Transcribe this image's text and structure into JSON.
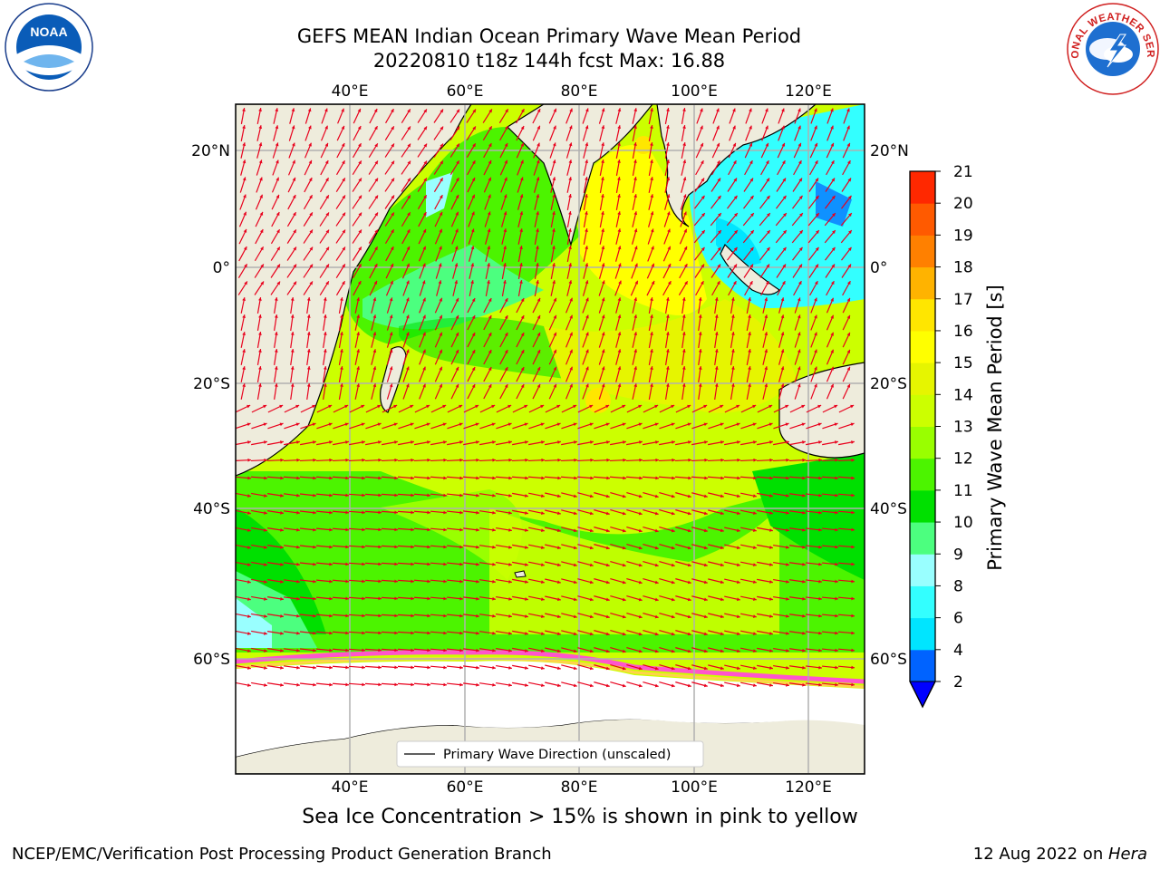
{
  "title": {
    "line1": "GEFS MEAN Indian Ocean Primary Wave Mean Period",
    "line2": "20220810 t18z 144h fcst   Max: 16.88"
  },
  "map": {
    "lon_ticks_top": [
      "40°E",
      "60°E",
      "80°E",
      "100°E",
      "120°E"
    ],
    "lon_ticks_bottom": [
      "40°E",
      "60°E",
      "80°E",
      "100°E",
      "120°E"
    ],
    "lat_ticks_left": [
      "20°N",
      "0°",
      "20°S",
      "40°S",
      "60°S"
    ],
    "lat_ticks_right": [
      "20°N",
      "0°",
      "20°S",
      "40°S",
      "60°S"
    ],
    "legend_label": "Primary Wave Direction (unscaled)",
    "vector_color": "#e8001c",
    "land_color": "#eeecdc",
    "ice_color": "#ffffff"
  },
  "colorbar": {
    "label": "Primary Wave Mean Period [s]",
    "ticks": [
      "2",
      "4",
      "6",
      "8",
      "9",
      "10",
      "11",
      "12",
      "13",
      "14",
      "15",
      "16",
      "17",
      "18",
      "19",
      "20",
      "21"
    ],
    "colors": [
      "#0063ff",
      "#00e5ff",
      "#33ffff",
      "#99ffff",
      "#4cff7f",
      "#00e000",
      "#4cf400",
      "#99ff00",
      "#ccff00",
      "#e6f500",
      "#ffff00",
      "#ffe600",
      "#ffb300",
      "#ff8000",
      "#ff5a00",
      "#ff2800"
    ]
  },
  "logos": {
    "left": "NOAA",
    "right_words": "NATIONAL WEATHER SERVICE"
  },
  "caption": "Sea Ice Concentration > 15% is shown in pink to yellow",
  "footer": {
    "left": "NCEP/EMC/Verification Post Processing Product Generation Branch",
    "right_date": "12 Aug 2022 on ",
    "right_host": "Hera"
  }
}
